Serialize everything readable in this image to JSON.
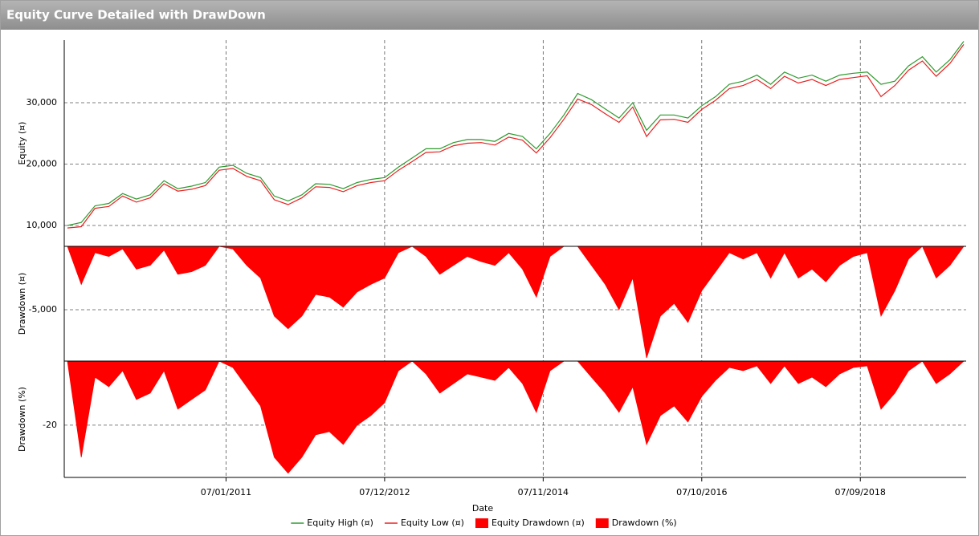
{
  "chart_data": {
    "type": "line",
    "title": "Equity Curve Detailed with DrawDown",
    "xlabel": "Date",
    "x": [
      "07/02/2009",
      "07/04/2009",
      "07/06/2009",
      "07/08/2009",
      "07/10/2009",
      "07/12/2009",
      "07/02/2010",
      "07/04/2010",
      "07/06/2010",
      "07/08/2010",
      "07/10/2010",
      "07/12/2010",
      "07/02/2011",
      "07/04/2011",
      "07/06/2011",
      "07/08/2011",
      "07/10/2011",
      "07/12/2011",
      "07/02/2012",
      "07/04/2012",
      "07/06/2012",
      "07/08/2012",
      "07/10/2012",
      "07/12/2012",
      "07/02/2013",
      "07/04/2013",
      "07/06/2013",
      "07/08/2013",
      "07/10/2013",
      "07/12/2013",
      "07/02/2014",
      "07/04/2014",
      "07/06/2014",
      "07/08/2014",
      "07/10/2014",
      "07/12/2014",
      "07/02/2015",
      "07/04/2015",
      "07/06/2015",
      "07/08/2015",
      "07/10/2015",
      "07/12/2015",
      "07/02/2016",
      "07/04/2016",
      "07/06/2016",
      "07/08/2016",
      "07/10/2016",
      "07/12/2016",
      "07/02/2017",
      "07/04/2017",
      "07/06/2017",
      "07/08/2017",
      "07/10/2017",
      "07/12/2017",
      "07/02/2018",
      "07/04/2018",
      "07/06/2018",
      "07/08/2018",
      "07/10/2018",
      "07/12/2018",
      "07/02/2019",
      "07/04/2019",
      "07/06/2019",
      "07/08/2019",
      "07/10/2019",
      "07/12/2019"
    ],
    "xlim": [
      "07/02/2009",
      "07/12/2019"
    ],
    "xticks": [
      "07/01/2011",
      "07/12/2012",
      "07/11/2014",
      "07/10/2016",
      "07/09/2018"
    ],
    "grid": true,
    "panes": [
      {
        "ylabel": "Equity (¤)",
        "ylim": [
          6600,
          40200
        ],
        "yticks": [
          {
            "value": 10000,
            "label": "10,000"
          },
          {
            "value": 20000,
            "label": "20,000"
          },
          {
            "value": 30000,
            "label": "30,000"
          }
        ]
      },
      {
        "ylabel": "Drawdown (¤)",
        "ylim": [
          -9050,
          0
        ],
        "yticks": [
          {
            "value": -5000,
            "label": "-5,000"
          }
        ]
      },
      {
        "ylabel": "Drawdown (%)",
        "ylim": [
          -36.3,
          0
        ],
        "yticks": [
          -20
        ]
      }
    ],
    "series": [
      {
        "name": "Equity High (¤)",
        "type": "line",
        "pane": 0,
        "color": "#2e9a2e",
        "values": [
          10000,
          10500,
          13200,
          13600,
          15200,
          14300,
          15000,
          17300,
          16000,
          16400,
          17000,
          19500,
          19800,
          18500,
          17800,
          14800,
          14000,
          15000,
          16800,
          16700,
          16000,
          17000,
          17500,
          17800,
          19500,
          21000,
          22500,
          22500,
          23500,
          24000,
          24000,
          23700,
          25000,
          24500,
          22500,
          25000,
          28000,
          31500,
          30500,
          29000,
          27500,
          30000,
          25500,
          28000,
          28000,
          27500,
          29500,
          31000,
          33000,
          33500,
          34500,
          33000,
          35000,
          34000,
          34500,
          33500,
          34500,
          34800,
          35000,
          33000,
          33500,
          36000,
          37500,
          35000,
          37000,
          40000
        ]
      },
      {
        "name": "Equity Low (¤)",
        "type": "line",
        "pane": 0,
        "color": "#e82020",
        "values": [
          9600,
          9800,
          12800,
          13100,
          14800,
          13800,
          14500,
          16800,
          15600,
          15900,
          16500,
          19000,
          19300,
          18000,
          17300,
          14200,
          13400,
          14500,
          16300,
          16200,
          15500,
          16500,
          17000,
          17300,
          19000,
          20400,
          21900,
          22000,
          23000,
          23400,
          23500,
          23100,
          24400,
          23900,
          21800,
          24300,
          27300,
          30600,
          29700,
          28200,
          26800,
          29300,
          24500,
          27200,
          27300,
          26800,
          28900,
          30400,
          32300,
          32800,
          33800,
          32300,
          34300,
          33200,
          33800,
          32800,
          33800,
          34100,
          34400,
          31000,
          32800,
          35300,
          36800,
          34300,
          36400,
          39500
        ]
      },
      {
        "name": "Equity Drawdown (¤)",
        "type": "area",
        "pane": 1,
        "color": "#ff0000",
        "values": [
          0,
          -3000,
          -500,
          -800,
          -200,
          -1800,
          -1500,
          -300,
          -2200,
          -2000,
          -1500,
          0,
          -200,
          -1500,
          -2500,
          -5500,
          -6500,
          -5500,
          -3800,
          -4000,
          -4800,
          -3600,
          -3000,
          -2500,
          -500,
          0,
          -800,
          -2200,
          -1500,
          -800,
          -1200,
          -1500,
          -500,
          -1800,
          -4000,
          -800,
          0,
          0,
          -1500,
          -3000,
          -5000,
          -2500,
          -8800,
          -5500,
          -4500,
          -6000,
          -3500,
          -2000,
          -500,
          -1000,
          -500,
          -2500,
          -500,
          -2500,
          -1800,
          -2800,
          -1500,
          -800,
          -500,
          -5500,
          -3500,
          -1000,
          0,
          -2500,
          -1500,
          0
        ]
      },
      {
        "name": "Drawdown (%)",
        "type": "area",
        "pane": 2,
        "color": "#ff0000",
        "values": [
          0,
          -30,
          -5,
          -8,
          -3,
          -12,
          -10,
          -3,
          -15,
          -12,
          -9,
          0,
          -2,
          -8,
          -14,
          -30,
          -35,
          -30,
          -23,
          -22,
          -26,
          -20,
          -17,
          -13,
          -3,
          0,
          -4,
          -10,
          -7,
          -4,
          -5,
          -6,
          -2,
          -7,
          -16,
          -3,
          0,
          0,
          -5,
          -10,
          -16,
          -8,
          -26,
          -17,
          -14,
          -19,
          -11,
          -6,
          -2,
          -3,
          -1.5,
          -7,
          -1.5,
          -7,
          -5,
          -8,
          -4,
          -2,
          -1.5,
          -15,
          -10,
          -3,
          0,
          -7,
          -4,
          0
        ]
      }
    ]
  }
}
